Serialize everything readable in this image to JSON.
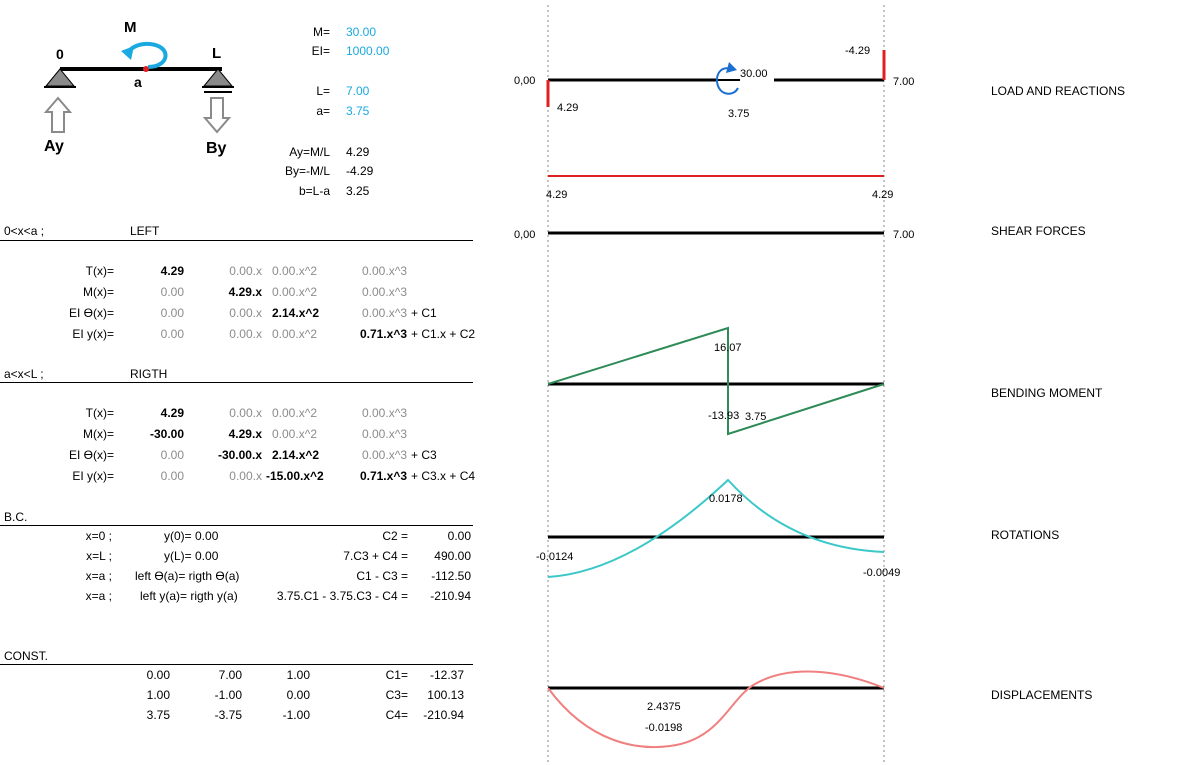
{
  "beam_sketch": {
    "left_label": "0",
    "right_label": "L",
    "moment_label": "M",
    "a_label": "a",
    "ay_label": "Ay",
    "by_label": "By"
  },
  "params": {
    "m_label": "M=",
    "m_val": "30.00",
    "ei_label": "EI=",
    "ei_val": "1000.00",
    "l_label": "L=",
    "l_val": "7.00",
    "a_label": "a=",
    "a_val": "3.75",
    "ay_label": "Ay=M/L",
    "ay_val": "4.29",
    "by_label": "By=-M/L",
    "by_val": "-4.29",
    "b_label": "b=L-a",
    "b_val": "3.25"
  },
  "left": {
    "range": "0<x<a ;",
    "title": "LEFT",
    "rows": [
      {
        "label": "T(x)=",
        "c0": "4.29",
        "c1": "0.00.x",
        "c2": "0.00.x^2",
        "c3": "0.00.x^3",
        "tail": ""
      },
      {
        "label": "M(x)=",
        "c0": "0.00",
        "c1": "4.29.x",
        "c2": "0.00.x^2",
        "c3": "0.00.x^3",
        "tail": ""
      },
      {
        "label": "EI ϴ(x)=",
        "c0": "0.00",
        "c1": "0.00.x",
        "c2": "2.14.x^2",
        "c3": "0.00.x^3",
        "tail": "+ C1"
      },
      {
        "label": "EI y(x)=",
        "c0": "0.00",
        "c1": "0.00.x",
        "c2": "0.00.x^2",
        "c3": "0.71.x^3",
        "tail": "+ C1.x + C2"
      }
    ]
  },
  "right": {
    "range": "a<x<L ;",
    "title": "RIGTH",
    "rows": [
      {
        "label": "T(x)=",
        "c0": "4.29",
        "c1": "0.00.x",
        "c2": "0.00.x^2",
        "c3": "0.00.x^3",
        "tail": ""
      },
      {
        "label": "M(x)=",
        "c0": "-30.00",
        "c1": "4.29.x",
        "c2": "0.00.x^2",
        "c3": "0.00.x^3",
        "tail": ""
      },
      {
        "label": "EI ϴ(x)=",
        "c0": "0.00",
        "c1": "-30.00.x",
        "c2": "2.14.x^2",
        "c3": "0.00.x^3",
        "tail": "+ C3"
      },
      {
        "label": "EI y(x)=",
        "c0": "0.00",
        "c1": "0.00.x",
        "c2": "-15.00.x^2",
        "c3": "0.71.x^3",
        "tail": "+ C3.x + C4"
      }
    ]
  },
  "bc": {
    "title": "B.C.",
    "rows": [
      {
        "x": "x=0 ;",
        "cond": "y(0)= 0.00",
        "eq": "C2 =",
        "val": "0.00"
      },
      {
        "x": "x=L ;",
        "cond": "y(L)= 0.00",
        "eq": "7.C3 + C4 =",
        "val": "490.00"
      },
      {
        "x": "x=a ;",
        "cond": "left ϴ(a)= rigth ϴ(a)",
        "eq": "C1 - C3 =",
        "val": "-112.50"
      },
      {
        "x": "x=a ;",
        "cond": "left y(a)= rigth y(a)",
        "eq": "3.75.C1 - 3.75.C3 - C4 =",
        "val": "-210.94"
      }
    ]
  },
  "const": {
    "title": "CONST.",
    "rows": [
      {
        "a": "0.00",
        "b": "7.00",
        "c": "1.00",
        "name": "C1=",
        "val": "-12.37"
      },
      {
        "a": "1.00",
        "b": "-1.00",
        "c": "0.00",
        "name": "C3=",
        "val": "100.13"
      },
      {
        "a": "3.75",
        "b": "-3.75",
        "c": "-1.00",
        "name": "C4=",
        "val": "-210.94"
      }
    ]
  },
  "diagram_labels": {
    "load_title": "LOAD AND REACTIONS",
    "load_left": "0,00",
    "load_right": "7.00",
    "load_top_right": "-4.29",
    "load_left_reac": "4.29",
    "load_moment": "30.00",
    "load_pos": "3.75",
    "shear_title": "SHEAR FORCES",
    "shear_left_top": "4.29",
    "shear_right_top": "4.29",
    "shear_left": "0,00",
    "shear_right": "7.00",
    "moment_title": "BENDING MOMENT",
    "moment_max": "16.07",
    "moment_min": "-13.93",
    "moment_pos": "3.75",
    "rot_title": "ROTATIONS",
    "rot_max": "0.0178",
    "rot_left": "-0.0124",
    "rot_right": "-0.0049",
    "disp_title": "DISPLACEMENTS",
    "disp_pos": "2.4375",
    "disp_min": "-0.0198"
  },
  "colors": {
    "cyan": "#1aa9e0",
    "red": "#e02020",
    "green": "#2e8b57",
    "teal": "#3cc8c8",
    "pink": "#f08080"
  }
}
